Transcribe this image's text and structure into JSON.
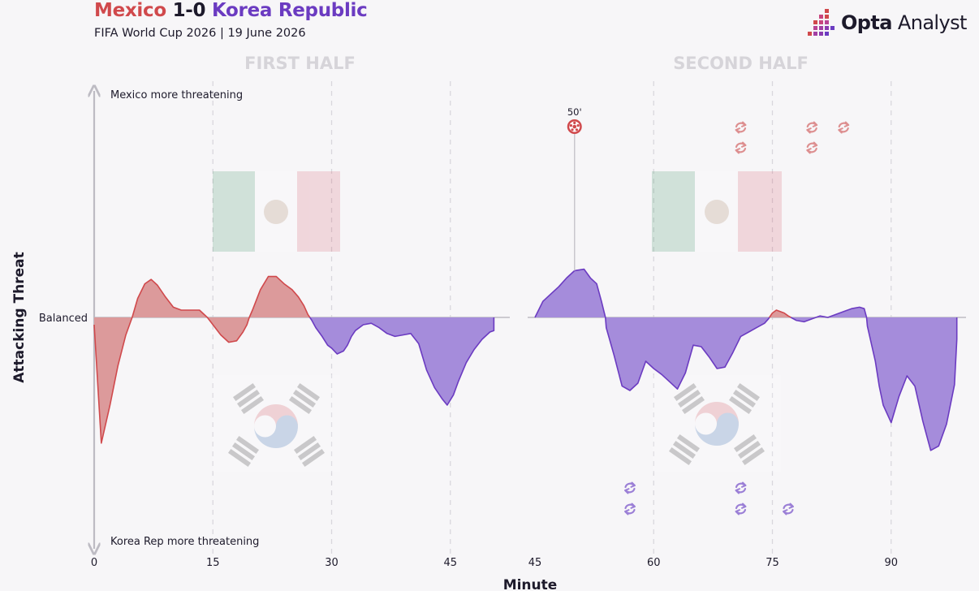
{
  "header": {
    "team_home": "Mexico",
    "score": "1-0",
    "team_away": "Korea Republic",
    "subtitle": "FIFA World Cup 2026 | 19 June 2026",
    "brand_bold": "Opta",
    "brand_light": "Analyst"
  },
  "colors": {
    "mexico": "#d0494c",
    "mexico_fill": "#dc9a9b",
    "korea": "#6b3bc1",
    "korea_fill": "#a58cdb",
    "axis": "#bdbbc3",
    "background": "#f7f6f8"
  },
  "icons": {
    "goal": "football-icon",
    "substitution": "substitution-icon",
    "brand": "opta-bars-logo"
  },
  "chart_data": {
    "type": "area",
    "panels": [
      {
        "label": "FIRST HALF",
        "xlim": [
          0,
          52
        ],
        "ticks": [
          0,
          15,
          30,
          45
        ]
      },
      {
        "label": "SECOND HALF",
        "xlim": [
          45,
          97
        ],
        "ticks": [
          45,
          60,
          75,
          90
        ]
      }
    ],
    "ylim": [
      -1,
      1
    ],
    "ylabel": "Attacking Threat",
    "xlabel": "Minute",
    "top_label": "Mexico more threatening",
    "bottom_label": "Korea Rep more threatening",
    "baseline_label": "Balanced",
    "series": [
      {
        "panel": 0,
        "points": [
          [
            0,
            -0.05
          ],
          [
            0.9,
            -0.86
          ],
          [
            2,
            -0.6
          ],
          [
            3,
            -0.33
          ],
          [
            4,
            -0.12
          ],
          [
            4.8,
            0
          ],
          [
            5.5,
            0.13
          ],
          [
            6.4,
            0.23
          ],
          [
            7.2,
            0.26
          ],
          [
            8,
            0.22
          ],
          [
            9,
            0.14
          ],
          [
            10,
            0.07
          ],
          [
            11,
            0.05
          ],
          [
            12.5,
            0.05
          ],
          [
            13.3,
            0.05
          ],
          [
            14.3,
            0.0
          ],
          [
            15,
            -0.05
          ],
          [
            16,
            -0.12
          ],
          [
            17,
            -0.17
          ],
          [
            18,
            -0.16
          ],
          [
            18.8,
            -0.1
          ],
          [
            19.3,
            -0.05
          ],
          [
            19.6,
            0
          ],
          [
            20,
            0.05
          ],
          [
            21,
            0.19
          ],
          [
            22,
            0.28
          ],
          [
            23,
            0.28
          ],
          [
            24,
            0.23
          ],
          [
            25,
            0.19
          ],
          [
            25.8,
            0.14
          ],
          [
            26.5,
            0.08
          ],
          [
            27,
            0.02
          ],
          [
            27.5,
            -0.02
          ],
          [
            28,
            -0.07
          ],
          [
            28.8,
            -0.13
          ],
          [
            29.5,
            -0.19
          ],
          [
            30,
            -0.21
          ],
          [
            30.7,
            -0.25
          ],
          [
            31.5,
            -0.23
          ],
          [
            32,
            -0.19
          ],
          [
            32.5,
            -0.13
          ],
          [
            33,
            -0.09
          ],
          [
            34,
            -0.05
          ],
          [
            35,
            -0.04
          ],
          [
            36,
            -0.07
          ],
          [
            37,
            -0.11
          ],
          [
            38,
            -0.13
          ],
          [
            39,
            -0.12
          ],
          [
            40,
            -0.11
          ],
          [
            41,
            -0.18
          ],
          [
            42,
            -0.36
          ],
          [
            43,
            -0.48
          ],
          [
            44,
            -0.56
          ],
          [
            44.6,
            -0.6
          ],
          [
            45.4,
            -0.53
          ],
          [
            46,
            -0.44
          ],
          [
            47,
            -0.31
          ],
          [
            48,
            -0.22
          ],
          [
            49,
            -0.15
          ],
          [
            50,
            -0.1
          ],
          [
            50.5,
            -0.09
          ],
          [
            50.5,
            0
          ]
        ]
      },
      {
        "panel": 1,
        "points": [
          [
            45,
            0
          ],
          [
            46,
            0.11
          ],
          [
            47,
            0.16
          ],
          [
            48,
            0.21
          ],
          [
            49,
            0.27
          ],
          [
            50,
            0.32
          ],
          [
            51.2,
            0.33
          ],
          [
            52,
            0.27
          ],
          [
            52.8,
            0.23
          ],
          [
            53.4,
            0.11
          ],
          [
            53.9,
            0
          ],
          [
            54,
            -0.07
          ],
          [
            55,
            -0.26
          ],
          [
            56,
            -0.47
          ],
          [
            57,
            -0.5
          ],
          [
            58,
            -0.45
          ],
          [
            59,
            -0.3
          ],
          [
            60,
            -0.35
          ],
          [
            61,
            -0.39
          ],
          [
            62,
            -0.44
          ],
          [
            63,
            -0.49
          ],
          [
            64,
            -0.38
          ],
          [
            65,
            -0.19
          ],
          [
            66,
            -0.2
          ],
          [
            67,
            -0.27
          ],
          [
            68,
            -0.35
          ],
          [
            69,
            -0.34
          ],
          [
            70,
            -0.24
          ],
          [
            71,
            -0.13
          ],
          [
            72,
            -0.1
          ],
          [
            73,
            -0.07
          ],
          [
            74,
            -0.04
          ],
          [
            74.5,
            -0.01
          ],
          [
            75,
            0.03
          ],
          [
            75.5,
            0.05
          ],
          [
            76.5,
            0.03
          ],
          [
            77,
            0.01
          ],
          [
            78,
            -0.02
          ],
          [
            79,
            -0.03
          ],
          [
            80,
            -0.01
          ],
          [
            81,
            0.01
          ],
          [
            82,
            0.0
          ],
          [
            83,
            0.02
          ],
          [
            84,
            0.04
          ],
          [
            85,
            0.06
          ],
          [
            86,
            0.07
          ],
          [
            86.6,
            0.06
          ],
          [
            86.9,
            0
          ],
          [
            87,
            -0.06
          ],
          [
            88,
            -0.3
          ],
          [
            88.5,
            -0.47
          ],
          [
            89,
            -0.6
          ],
          [
            90,
            -0.72
          ],
          [
            91,
            -0.54
          ],
          [
            92,
            -0.4
          ],
          [
            93,
            -0.47
          ],
          [
            94,
            -0.71
          ],
          [
            95,
            -0.91
          ],
          [
            96,
            -0.88
          ],
          [
            97,
            -0.73
          ],
          [
            98,
            -0.46
          ],
          [
            98.3,
            -0.15
          ],
          [
            98.3,
            0
          ]
        ]
      }
    ],
    "goals": [
      {
        "team": "Mexico",
        "minute": 50,
        "label": "50'"
      }
    ],
    "substitutions": [
      {
        "team": "Mexico",
        "minute": 71,
        "slot": 1
      },
      {
        "team": "Mexico",
        "minute": 71,
        "slot": 2
      },
      {
        "team": "Mexico",
        "minute": 80,
        "slot": 1
      },
      {
        "team": "Mexico",
        "minute": 80,
        "slot": 2
      },
      {
        "team": "Mexico",
        "minute": 84,
        "slot": 1
      },
      {
        "team": "Korea Republic",
        "minute": 57,
        "slot": 1
      },
      {
        "team": "Korea Republic",
        "minute": 57,
        "slot": 2
      },
      {
        "team": "Korea Republic",
        "minute": 71,
        "slot": 1
      },
      {
        "team": "Korea Republic",
        "minute": 71,
        "slot": 2
      },
      {
        "team": "Korea Republic",
        "minute": 77,
        "slot": 2
      }
    ]
  }
}
